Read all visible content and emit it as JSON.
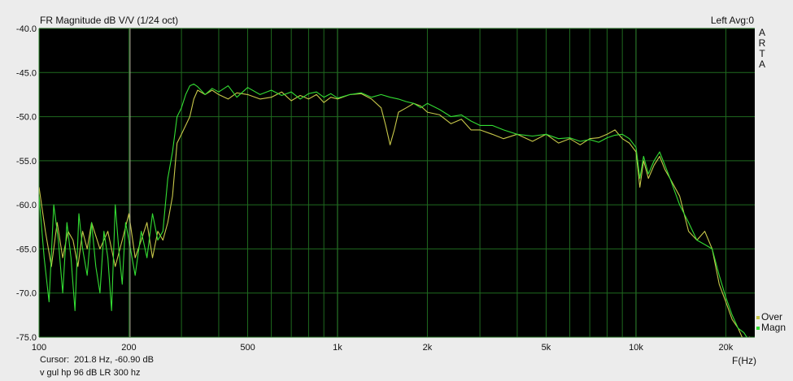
{
  "chart_data": {
    "type": "line",
    "title": "FR Magnitude dB V/V (1/24 oct)",
    "xlabel": "F(Hz)",
    "ylabel": "",
    "x_scale": "log",
    "xlim": [
      100,
      25000
    ],
    "ylim": [
      -75,
      -40
    ],
    "x_ticks": [
      {
        "v": 100,
        "label": "100"
      },
      {
        "v": 200,
        "label": "200"
      },
      {
        "v": 500,
        "label": "500"
      },
      {
        "v": 1000,
        "label": "1k"
      },
      {
        "v": 2000,
        "label": "2k"
      },
      {
        "v": 5000,
        "label": "5k"
      },
      {
        "v": 10000,
        "label": "10k"
      },
      {
        "v": 20000,
        "label": "20k"
      }
    ],
    "y_ticks": [
      -40,
      -45,
      -50,
      -55,
      -60,
      -65,
      -70,
      -75
    ],
    "y_tick_labels": [
      "-40.0",
      "-45.0",
      "-50.0",
      "-55.0",
      "-60.0",
      "-65.0",
      "-70.0",
      "-75.0"
    ],
    "grid": true,
    "legend_position": "bottom-right",
    "cursor_freq": 201.8,
    "series": [
      {
        "name": "Over",
        "color": "#c8c84a",
        "x": [
          100,
          105,
          110,
          115,
          120,
          125,
          130,
          135,
          140,
          145,
          150,
          160,
          170,
          180,
          190,
          200,
          210,
          220,
          230,
          240,
          250,
          260,
          270,
          280,
          290,
          300,
          310,
          320,
          330,
          340,
          360,
          380,
          400,
          430,
          460,
          500,
          550,
          600,
          650,
          700,
          750,
          800,
          850,
          900,
          950,
          1000,
          1100,
          1200,
          1300,
          1400,
          1450,
          1500,
          1550,
          1600,
          1700,
          1800,
          1900,
          2000,
          2200,
          2400,
          2600,
          2800,
          3000,
          3300,
          3600,
          4000,
          4500,
          5000,
          5500,
          6000,
          6500,
          7000,
          7500,
          8000,
          8500,
          9000,
          9500,
          10000,
          10300,
          10600,
          11000,
          11500,
          12000,
          12500,
          13000,
          14000,
          15000,
          16000,
          17000,
          18000,
          19000,
          20000,
          21000,
          22000,
          23000,
          24000,
          25000
        ],
        "y": [
          -58,
          -63,
          -67,
          -62,
          -66,
          -63,
          -64,
          -67,
          -63,
          -65,
          -62,
          -65,
          -63,
          -67,
          -64,
          -61,
          -66,
          -64,
          -62,
          -66,
          -63,
          -64,
          -62,
          -59,
          -53,
          -52,
          -51,
          -50,
          -48,
          -47,
          -47.5,
          -47,
          -47.5,
          -48,
          -47.3,
          -47.5,
          -48,
          -47.8,
          -47.2,
          -48.2,
          -47.6,
          -48,
          -47.5,
          -48.4,
          -47.8,
          -48,
          -47.5,
          -47.4,
          -48,
          -49,
          -51,
          -53.2,
          -51.5,
          -49.5,
          -49,
          -48.5,
          -48.8,
          -49.5,
          -49.8,
          -50.8,
          -50.3,
          -51.5,
          -51.5,
          -52,
          -52.5,
          -52,
          -52.8,
          -52,
          -53,
          -52.5,
          -53.2,
          -52.5,
          -52.4,
          -52,
          -51.5,
          -52.5,
          -53,
          -54,
          -58,
          -55,
          -57,
          -55.5,
          -54.5,
          -56,
          -57,
          -59,
          -63,
          -64,
          -63,
          -65,
          -69,
          -71,
          -73,
          -74,
          -75.5,
          -75,
          -75.5
        ]
      },
      {
        "name": "Magn",
        "color": "#33dd33",
        "x": [
          100,
          104,
          108,
          112,
          116,
          120,
          124,
          128,
          132,
          136,
          140,
          145,
          150,
          155,
          160,
          165,
          170,
          175,
          180,
          185,
          190,
          195,
          200,
          210,
          220,
          230,
          240,
          250,
          260,
          270,
          280,
          290,
          300,
          310,
          320,
          330,
          340,
          360,
          380,
          400,
          430,
          460,
          500,
          550,
          600,
          650,
          700,
          750,
          800,
          850,
          900,
          950,
          1000,
          1100,
          1200,
          1300,
          1400,
          1500,
          1600,
          1700,
          1800,
          1900,
          2000,
          2200,
          2400,
          2600,
          2800,
          3000,
          3300,
          3600,
          4000,
          4500,
          5000,
          5500,
          6000,
          6500,
          7000,
          7500,
          8000,
          8500,
          9000,
          9500,
          10000,
          10300,
          10600,
          11000,
          11500,
          12000,
          12500,
          13000,
          14000,
          15000,
          16000,
          17000,
          18000,
          19000,
          20000,
          21000,
          22000,
          23000,
          24000,
          25000
        ],
        "y": [
          -59,
          -66,
          -71,
          -60,
          -64,
          -70,
          -62,
          -66,
          -72,
          -61,
          -65,
          -68,
          -62,
          -67,
          -70,
          -63,
          -66,
          -72,
          -60,
          -65,
          -69,
          -62,
          -64,
          -68,
          -63,
          -66,
          -61,
          -64,
          -63,
          -57,
          -54,
          -50,
          -49,
          -47.5,
          -46.5,
          -46.3,
          -46.6,
          -47.5,
          -46.8,
          -47.2,
          -46.5,
          -47.8,
          -46.7,
          -47.5,
          -47,
          -47.6,
          -47.2,
          -48,
          -47.4,
          -47.2,
          -47.8,
          -47.4,
          -47.9,
          -47.5,
          -47.3,
          -47.8,
          -47.5,
          -47.8,
          -48,
          -48.3,
          -48.5,
          -49,
          -48.5,
          -49.2,
          -50,
          -49.8,
          -50.5,
          -51,
          -51,
          -51.5,
          -52,
          -52.2,
          -52,
          -52.5,
          -52.4,
          -52.8,
          -52.6,
          -52.9,
          -52.4,
          -52.1,
          -52,
          -52.5,
          -53.5,
          -57,
          -54.5,
          -56.5,
          -55,
          -54,
          -55.5,
          -57,
          -60,
          -62,
          -64,
          -64.5,
          -65,
          -68,
          -70.5,
          -72.5,
          -74,
          -74.5,
          -75.5,
          -75
        ]
      }
    ]
  },
  "header": {
    "title": "FR Magnitude dB V/V (1/24 oct)",
    "channel_info": "Left  Avg:0",
    "side_letters": [
      "A",
      "R",
      "T",
      "A"
    ]
  },
  "footer": {
    "cursor_label": "Cursor:",
    "cursor_value": "201.8 Hz, -60.90 dB",
    "note": "v gul hp 96 dB LR 300 hz",
    "freq_axis_label": "F(Hz)"
  }
}
